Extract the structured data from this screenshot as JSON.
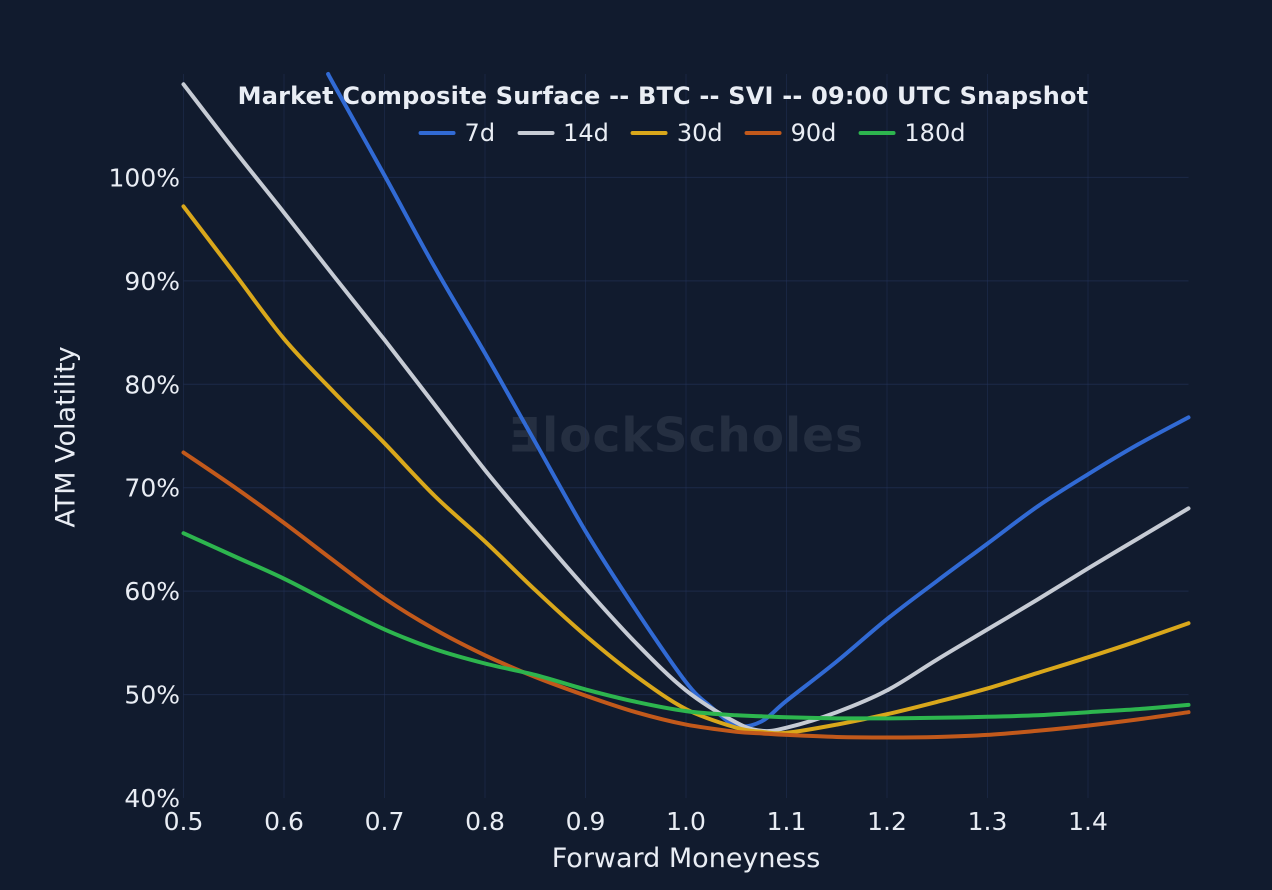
{
  "watermark": {
    "logo": "Ǝ",
    "text": "lockScholes"
  },
  "colors": {
    "background": "#111b2e",
    "grid": "#26365e",
    "text": "#e9edf4",
    "watermark": "rgba(198,208,230,0.11)"
  },
  "chart_data": {
    "type": "line",
    "title": "Market Composite Surface -- BTC -- SVI -- 09:00 UTC Snapshot",
    "xlabel": "Forward Moneyness",
    "ylabel": "ATM Volatility",
    "xlim": [
      0.5,
      1.5
    ],
    "ylim": [
      40,
      110
    ],
    "grid": true,
    "legend_position": "top-center",
    "y_unit": "percent",
    "x_tick_values": [
      0.5,
      0.6,
      0.7,
      0.8,
      0.9,
      1.0,
      1.1,
      1.2,
      1.3,
      1.4
    ],
    "x_tick_labels": [
      "0.5",
      "0.6",
      "0.7",
      "0.8",
      "0.9",
      "1.0",
      "1.1",
      "1.2",
      "1.3",
      "1.4"
    ],
    "y_tick_values": [
      40,
      50,
      60,
      70,
      80,
      90,
      100
    ],
    "y_tick_labels": [
      "40%",
      "50%",
      "60%",
      "70%",
      "80%",
      "90%",
      "100%"
    ],
    "series": [
      {
        "name": "7d",
        "color": "#316ad4",
        "x": [
          0.644,
          0.65,
          0.7,
          0.75,
          0.8,
          0.85,
          0.9,
          0.95,
          1.0,
          1.025,
          1.05,
          1.075,
          1.1,
          1.15,
          1.2,
          1.25,
          1.3,
          1.35,
          1.4,
          1.45,
          1.5
        ],
        "y": [
          110,
          108.9,
          100.2,
          91.3,
          83.0,
          74.4,
          65.8,
          58.2,
          51.2,
          48.8,
          47.0,
          47.4,
          49.4,
          53.2,
          57.3,
          61.0,
          64.6,
          68.2,
          71.3,
          74.2,
          76.8
        ]
      },
      {
        "name": "14d",
        "color": "#c6cbd4",
        "x": [
          0.5,
          0.55,
          0.6,
          0.65,
          0.7,
          0.75,
          0.8,
          0.85,
          0.9,
          0.95,
          1.0,
          1.05,
          1.075,
          1.1,
          1.15,
          1.2,
          1.25,
          1.3,
          1.35,
          1.4,
          1.45,
          1.5
        ],
        "y": [
          109.0,
          102.7,
          96.6,
          90.4,
          84.3,
          78.0,
          71.7,
          65.9,
          60.3,
          55.0,
          50.4,
          47.3,
          46.5,
          46.8,
          48.3,
          50.4,
          53.4,
          56.3,
          59.2,
          62.2,
          65.1,
          68.0
        ]
      },
      {
        "name": "30d",
        "color": "#d9a71b",
        "x": [
          0.5,
          0.55,
          0.6,
          0.65,
          0.7,
          0.75,
          0.8,
          0.85,
          0.9,
          0.95,
          1.0,
          1.05,
          1.075,
          1.1,
          1.15,
          1.2,
          1.25,
          1.3,
          1.35,
          1.4,
          1.45,
          1.5
        ],
        "y": [
          97.2,
          90.8,
          84.4,
          79.2,
          74.3,
          69.2,
          64.8,
          60.1,
          55.7,
          51.8,
          48.6,
          46.8,
          46.4,
          46.3,
          47.1,
          48.1,
          49.3,
          50.6,
          52.1,
          53.6,
          55.2,
          56.9
        ]
      },
      {
        "name": "90d",
        "color": "#c2591b",
        "x": [
          0.5,
          0.55,
          0.6,
          0.65,
          0.7,
          0.75,
          0.8,
          0.85,
          0.9,
          0.95,
          1.0,
          1.05,
          1.075,
          1.1,
          1.15,
          1.2,
          1.25,
          1.3,
          1.35,
          1.4,
          1.45,
          1.5
        ],
        "y": [
          73.4,
          70.1,
          66.6,
          62.9,
          59.3,
          56.3,
          53.8,
          51.7,
          49.9,
          48.3,
          47.1,
          46.4,
          46.25,
          46.1,
          45.9,
          45.85,
          45.9,
          46.1,
          46.5,
          47.0,
          47.6,
          48.3
        ]
      },
      {
        "name": "180d",
        "color": "#2db54e",
        "x": [
          0.5,
          0.55,
          0.6,
          0.65,
          0.7,
          0.75,
          0.8,
          0.85,
          0.9,
          0.95,
          1.0,
          1.05,
          1.075,
          1.1,
          1.15,
          1.2,
          1.25,
          1.3,
          1.35,
          1.4,
          1.45,
          1.5
        ],
        "y": [
          65.6,
          63.4,
          61.2,
          58.7,
          56.3,
          54.4,
          53.0,
          51.9,
          50.5,
          49.3,
          48.4,
          48.0,
          47.9,
          47.8,
          47.7,
          47.7,
          47.75,
          47.85,
          48.0,
          48.3,
          48.6,
          49.0
        ]
      }
    ]
  }
}
